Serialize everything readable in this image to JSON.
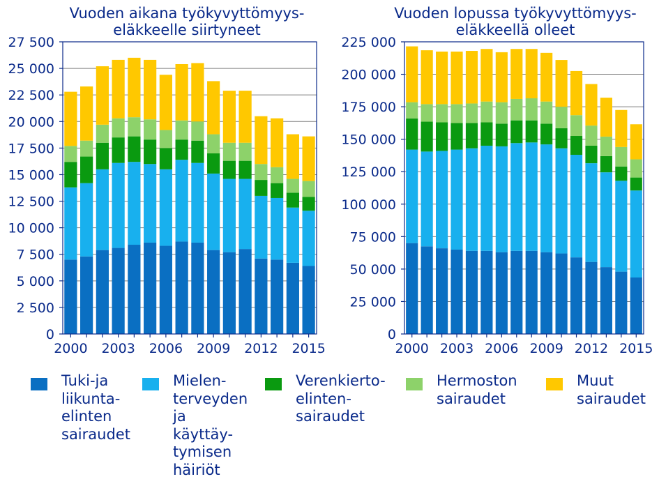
{
  "chart_data": [
    {
      "type": "bar",
      "stacked": true,
      "title": "Vuoden aikana työkyvyttömyys-\neläkkeelle siirtyneet",
      "xlabel": "",
      "ylabel": "",
      "ylim": [
        0,
        27500
      ],
      "yticks": [
        0,
        2500,
        5000,
        7500,
        10000,
        12500,
        15000,
        17500,
        20000,
        22500,
        25000,
        27500
      ],
      "ytick_labels": [
        "0",
        "2 500",
        "5 000",
        "7 500",
        "10 000",
        "12 500",
        "15 000",
        "17 500",
        "20 000",
        "22 500",
        "25 000",
        "27 500"
      ],
      "xtick_labels": [
        "2000",
        "2003",
        "2006",
        "2009",
        "2012",
        "2015"
      ],
      "grid": "horizontal",
      "categories": [
        "2000",
        "2001",
        "2002",
        "2003",
        "2004",
        "2005",
        "2006",
        "2007",
        "2008",
        "2009",
        "2010",
        "2011",
        "2012",
        "2013",
        "2014",
        "2015"
      ],
      "series": [
        {
          "name": "Tuki-ja\nliikunta-\nelinten\nsairaudet",
          "color": "#0a6fc2",
          "values": [
            7000,
            7300,
            7900,
            8100,
            8400,
            8600,
            8300,
            8700,
            8600,
            7900,
            7700,
            8000,
            7100,
            7000,
            6700,
            6400
          ]
        },
        {
          "name": "Mielen-\nterveyden\nja käyttäy-\ntymisen\nhäiriöt",
          "color": "#18b0ee",
          "values": [
            6800,
            6900,
            7600,
            8000,
            7800,
            7400,
            7200,
            7700,
            7500,
            7200,
            6900,
            6600,
            5900,
            5800,
            5200,
            5200
          ]
        },
        {
          "name": "Verenkierto-\nelinten-\nsairaudet",
          "color": "#0a9a10",
          "values": [
            2400,
            2500,
            2500,
            2400,
            2400,
            2300,
            2000,
            1900,
            2100,
            1900,
            1700,
            1700,
            1500,
            1400,
            1400,
            1300
          ]
        },
        {
          "name": "Hermoston\nsairaudet",
          "color": "#8dd26a",
          "values": [
            1500,
            1500,
            1700,
            1800,
            1800,
            1900,
            1700,
            1800,
            1800,
            1800,
            1700,
            1700,
            1500,
            1500,
            1300,
            1500
          ]
        },
        {
          "name": "Muut\nsairaudet",
          "color": "#ffc800",
          "values": [
            5100,
            5100,
            5500,
            5500,
            5600,
            5600,
            5200,
            5300,
            5500,
            5000,
            4900,
            4900,
            4500,
            4600,
            4200,
            4200
          ]
        }
      ]
    },
    {
      "type": "bar",
      "stacked": true,
      "title": "Vuoden lopussa työkyvyttömyys-\neläkkeellä olleet",
      "xlabel": "",
      "ylabel": "",
      "ylim": [
        0,
        225000
      ],
      "yticks": [
        0,
        25000,
        50000,
        75000,
        100000,
        125000,
        150000,
        175000,
        200000,
        225000
      ],
      "ytick_labels": [
        "0",
        "25 000",
        "50 000",
        "75 000",
        "100 000",
        "125 000",
        "150 000",
        "175 000",
        "200 000",
        "225 000"
      ],
      "xtick_labels": [
        "2000",
        "2003",
        "2006",
        "2009",
        "2012",
        "2015"
      ],
      "grid": "horizontal",
      "categories": [
        "2000",
        "2001",
        "2002",
        "2003",
        "2004",
        "2005",
        "2006",
        "2007",
        "2008",
        "2009",
        "2010",
        "2011",
        "2012",
        "2013",
        "2014",
        "2015"
      ],
      "series": [
        {
          "name": "Tuki-ja\nliikunta-\nelinten\nsairaudet",
          "color": "#0a6fc2",
          "values": [
            70000,
            67500,
            66000,
            65000,
            64000,
            64000,
            63000,
            64000,
            64000,
            63000,
            62000,
            59000,
            55500,
            51500,
            48000,
            43500
          ]
        },
        {
          "name": "Mielen-\nterveyden\nja käyttäy-\ntymisen\nhäiriöt",
          "color": "#18b0ee",
          "values": [
            72000,
            73000,
            75000,
            77000,
            79000,
            81000,
            81500,
            83000,
            83500,
            83000,
            81000,
            79000,
            76000,
            73000,
            70000,
            67000
          ]
        },
        {
          "name": "Verenkierto-\nelinten-\nsairaudet",
          "color": "#0a9a10",
          "values": [
            24000,
            23000,
            22000,
            20500,
            19500,
            18000,
            17500,
            17500,
            17000,
            16000,
            15500,
            14500,
            13500,
            12500,
            11000,
            10000
          ]
        },
        {
          "name": "Hermoston\nsairaudet",
          "color": "#8dd26a",
          "values": [
            12500,
            13500,
            14000,
            14500,
            15000,
            16000,
            16500,
            16500,
            17000,
            17000,
            16500,
            16000,
            15500,
            15000,
            15000,
            14000
          ]
        },
        {
          "name": "Muut\nsairaudet",
          "color": "#ffc800",
          "values": [
            43000,
            41500,
            40500,
            40500,
            40500,
            40500,
            38500,
            38500,
            38000,
            37500,
            36000,
            34000,
            32000,
            30000,
            28500,
            27000
          ]
        }
      ]
    }
  ],
  "legend": [
    {
      "label": "Tuki-ja\nliikunta-\nelinten\nsairaudet",
      "color": "#0a6fc2"
    },
    {
      "label": "Mielen-\nterveyden\nja käyttäy-\ntymisen\nhäiriöt",
      "color": "#18b0ee"
    },
    {
      "label": "Verenkierto-\nelinten-\nsairaudet",
      "color": "#0a9a10"
    },
    {
      "label": "Hermoston\nsairaudet",
      "color": "#8dd26a"
    },
    {
      "label": "Muut\nsairaudet",
      "color": "#ffc800"
    }
  ]
}
